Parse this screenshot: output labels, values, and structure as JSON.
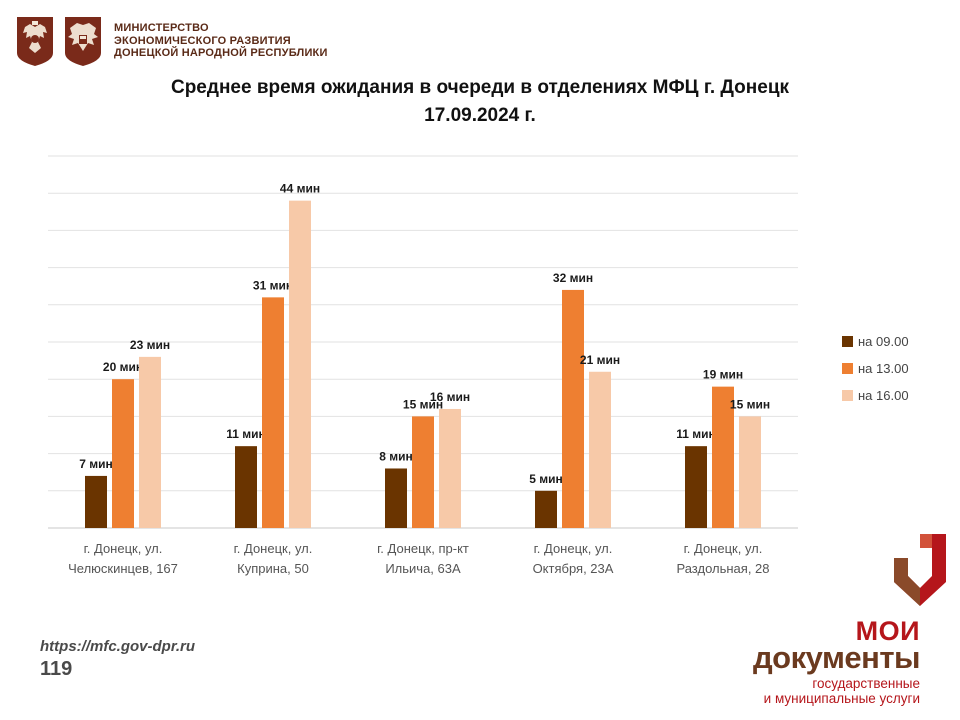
{
  "header": {
    "ministry_lines": [
      "МИНИСТЕРСТВО",
      "ЭКОНОМИЧЕСКОГО РАЗВИТИЯ",
      "ДОНЕЦКОЙ НАРОДНОЙ РЕСПУБЛИКИ"
    ],
    "emblem_icons": [
      "double-headed-eagle-emblem-icon",
      "dpr-eagle-emblem-icon"
    ]
  },
  "footer": {
    "url": "https://mfc.gov-dpr.ru",
    "page_number": "119"
  },
  "brand": {
    "logo_icon": "moi-dokumenty-logo-icon",
    "line1": "МОИ",
    "line2": "документы",
    "sub1": "государственные",
    "sub2": "и муниципальные услуги",
    "colors": {
      "red": "#b5161b",
      "brown": "#6b3a1f"
    }
  },
  "chart_data": {
    "type": "bar",
    "title_lines": [
      "Среднее время ожидания в очереди в отделениях МФЦ г. Донецк",
      "17.09.2024 г."
    ],
    "categories": [
      [
        "г. Донецк, ул.",
        "Челюскинцев, 167"
      ],
      [
        "г. Донецк, ул.",
        "Куприна, 50"
      ],
      [
        "г. Донецк, пр-кт",
        "Ильича, 63А"
      ],
      [
        "г. Донецк, ул.",
        "Октября, 23А"
      ],
      [
        "г. Донецк, ул.",
        "Раздольная, 28"
      ]
    ],
    "series": [
      {
        "name": "на 09.00",
        "color": "#6a3400",
        "values": [
          7,
          11,
          8,
          5,
          11
        ]
      },
      {
        "name": "на 13.00",
        "color": "#ee7f31",
        "values": [
          20,
          31,
          15,
          32,
          19
        ]
      },
      {
        "name": "на 16.00",
        "color": "#f7c9a8",
        "values": [
          23,
          44,
          16,
          21,
          15
        ]
      }
    ],
    "value_suffix": " мин",
    "ylim": [
      0,
      50
    ],
    "grid_step": 5,
    "grid": true,
    "legend_position": "right",
    "xlabel": "",
    "ylabel": ""
  }
}
